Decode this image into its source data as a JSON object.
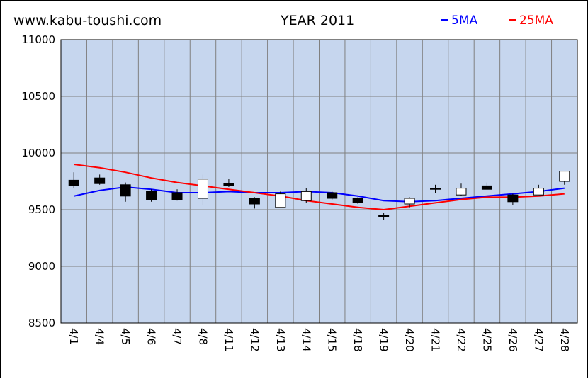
{
  "header": {
    "site": "www.kabu-toushi.com",
    "title": "YEAR 2011"
  },
  "legend": [
    {
      "label": "5MA",
      "color": "#0000ff"
    },
    {
      "label": "25MA",
      "color": "#ff0000"
    }
  ],
  "colors": {
    "plot_background": "#c6d6ee",
    "grid": "#808080",
    "bear_candle": "#000000",
    "bull_candle": "#ffffff"
  },
  "chart_data": {
    "type": "candlestick",
    "title": "YEAR 2011",
    "ylim": [
      8500,
      11000
    ],
    "yticks": [
      8500,
      9000,
      9500,
      10000,
      10500,
      11000
    ],
    "y_tick_labels": [
      "8500",
      "9000",
      "9500",
      "10000",
      "10500",
      "11000"
    ],
    "grid": true,
    "legend_position": "top-right",
    "categories": [
      "4/1",
      "4/4",
      "4/5",
      "4/6",
      "4/7",
      "4/8",
      "4/11",
      "4/12",
      "4/13",
      "4/14",
      "4/15",
      "4/18",
      "4/19",
      "4/20",
      "4/21",
      "4/22",
      "4/25",
      "4/26",
      "4/27",
      "4/28"
    ],
    "candles": [
      {
        "open": 9760,
        "high": 9830,
        "low": 9690,
        "close": 9710
      },
      {
        "open": 9780,
        "high": 9810,
        "low": 9720,
        "close": 9730
      },
      {
        "open": 9720,
        "high": 9740,
        "low": 9570,
        "close": 9620
      },
      {
        "open": 9660,
        "high": 9680,
        "low": 9570,
        "close": 9590
      },
      {
        "open": 9650,
        "high": 9680,
        "low": 9580,
        "close": 9590
      },
      {
        "open": 9600,
        "high": 9810,
        "low": 9540,
        "close": 9770
      },
      {
        "open": 9730,
        "high": 9770,
        "low": 9700,
        "close": 9710
      },
      {
        "open": 9600,
        "high": 9610,
        "low": 9510,
        "close": 9550
      },
      {
        "open": 9520,
        "high": 9660,
        "low": 9520,
        "close": 9640
      },
      {
        "open": 9580,
        "high": 9690,
        "low": 9560,
        "close": 9660
      },
      {
        "open": 9650,
        "high": 9660,
        "low": 9590,
        "close": 9600
      },
      {
        "open": 9600,
        "high": 9610,
        "low": 9550,
        "close": 9560
      },
      {
        "open": 9450,
        "high": 9470,
        "low": 9410,
        "close": 9440
      },
      {
        "open": 9550,
        "high": 9610,
        "low": 9520,
        "close": 9600
      },
      {
        "open": 9690,
        "high": 9720,
        "low": 9650,
        "close": 9680
      },
      {
        "open": 9630,
        "high": 9730,
        "low": 9620,
        "close": 9690
      },
      {
        "open": 9710,
        "high": 9740,
        "low": 9680,
        "close": 9680
      },
      {
        "open": 9630,
        "high": 9640,
        "low": 9540,
        "close": 9570
      },
      {
        "open": 9630,
        "high": 9720,
        "low": 9630,
        "close": 9690
      },
      {
        "open": 9750,
        "high": 9840,
        "low": 9720,
        "close": 9840
      }
    ],
    "series": [
      {
        "name": "5MA",
        "color": "#0000ff",
        "values": [
          9620,
          9670,
          9700,
          9680,
          9650,
          9650,
          9660,
          9650,
          9650,
          9660,
          9650,
          9620,
          9580,
          9570,
          9580,
          9600,
          9620,
          9640,
          9660,
          9690
        ]
      },
      {
        "name": "25MA",
        "color": "#ff0000",
        "values": [
          9900,
          9870,
          9830,
          9780,
          9740,
          9710,
          9680,
          9650,
          9620,
          9580,
          9550,
          9520,
          9500,
          9530,
          9560,
          9590,
          9610,
          9610,
          9620,
          9640
        ]
      }
    ]
  }
}
